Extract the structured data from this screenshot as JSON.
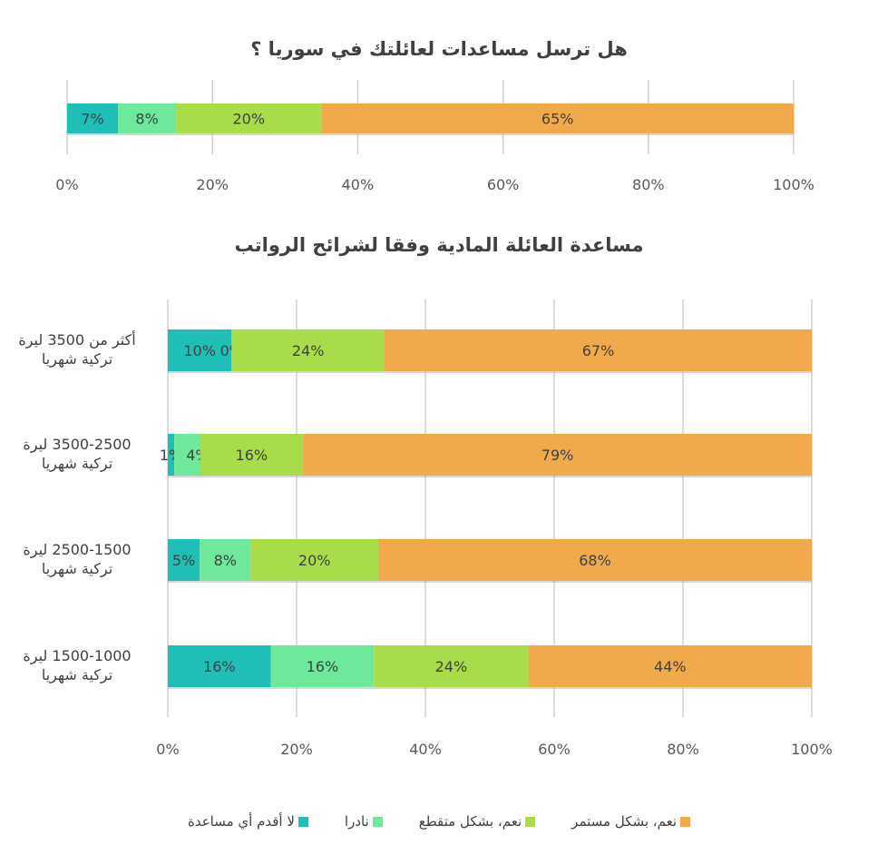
{
  "chart_data": [
    {
      "type": "bar",
      "orientation": "horizontal",
      "stacked": "percent",
      "title": "هل ترسل مساعدات لعائلتك في سوريا ؟",
      "categories": [
        ""
      ],
      "series": [
        {
          "name": "لا أقدم أي مساعدة",
          "values": [
            7
          ],
          "labels": [
            "7%"
          ]
        },
        {
          "name": "نادرا",
          "values": [
            8
          ],
          "labels": [
            "8%"
          ]
        },
        {
          "name": "نعم، بشكل متقطع",
          "values": [
            20
          ],
          "labels": [
            "20%"
          ]
        },
        {
          "name": "نعم، بشكل مستمر",
          "values": [
            65
          ],
          "labels": [
            "65%"
          ]
        }
      ],
      "xlim": [
        0,
        100
      ],
      "xticks": [
        "0%",
        "20%",
        "40%",
        "60%",
        "80%",
        "100%"
      ],
      "grid": true
    },
    {
      "type": "bar",
      "orientation": "horizontal",
      "stacked": "percent",
      "title": "مساعدة العائلة المادية وفقا لشرائح الرواتب",
      "categories": [
        [
          "أكثر من 3500 ليرة",
          "تركية شهريا"
        ],
        [
          "3500-2500 ليرة",
          "تركية شهريا"
        ],
        [
          "2500-1500 ليرة",
          "تركية شهريا"
        ],
        [
          "1500-1000 ليرة",
          "تركية شهريا"
        ]
      ],
      "series": [
        {
          "name": "لا أقدم أي مساعدة",
          "values": [
            10,
            1,
            5,
            16
          ],
          "labels": [
            "10%",
            "1%",
            "5%",
            "16%"
          ]
        },
        {
          "name": "نادرا",
          "values": [
            0,
            4,
            8,
            16
          ],
          "labels": [
            "0%",
            "4%",
            "8%",
            "16%"
          ]
        },
        {
          "name": "نعم، بشكل متقطع",
          "values": [
            24,
            16,
            20,
            24
          ],
          "labels": [
            "24%",
            "16%",
            "20%",
            "24%"
          ]
        },
        {
          "name": "نعم، بشكل مستمر",
          "values": [
            67,
            79,
            68,
            44
          ],
          "labels": [
            "67%",
            "79%",
            "68%",
            "44%"
          ]
        }
      ],
      "xlim": [
        0,
        100
      ],
      "xticks": [
        "0%",
        "20%",
        "40%",
        "60%",
        "80%",
        "100%"
      ],
      "grid": true,
      "legend": "bottom"
    }
  ],
  "colors": [
    "#1fbfb8",
    "#6ee89a",
    "#a8dc4a",
    "#f0aa4c"
  ]
}
